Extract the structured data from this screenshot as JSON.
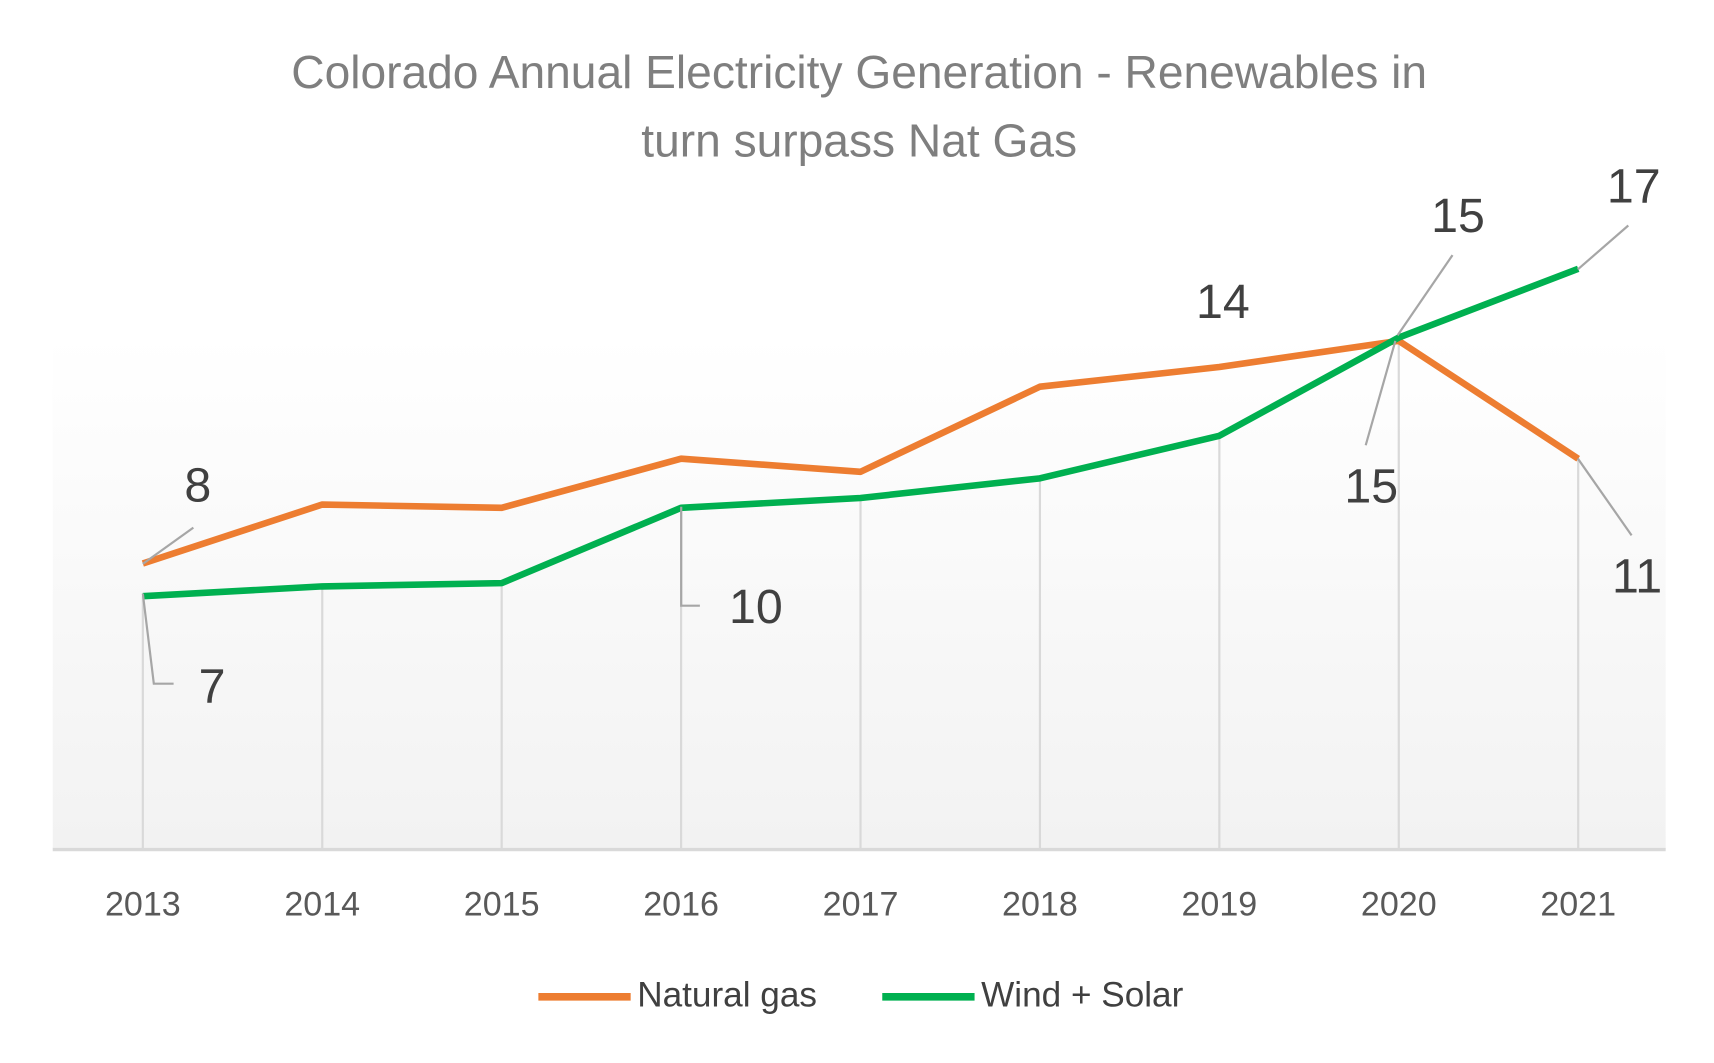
{
  "chart_data": {
    "type": "line",
    "title": "Colorado Annual Electricity Generation - Renewables in turn surpass Nat Gas",
    "title_lines": [
      "Colorado Annual Electricity Generation - Renewables in",
      "turn surpass Nat Gas"
    ],
    "xlabel": "",
    "ylabel": "",
    "categories": [
      "2013",
      "2014",
      "2015",
      "2016",
      "2017",
      "2018",
      "2019",
      "2020",
      "2021"
    ],
    "ylim": [
      -0.7,
      15.5
    ],
    "grid": "vertical",
    "legend_position": "bottom",
    "series": [
      {
        "name": "Natural gas",
        "color": "#ed7d31",
        "values": [
          8.0,
          9.8,
          9.7,
          11.2,
          10.8,
          13.4,
          14.0,
          14.8,
          11.2
        ],
        "labels": [
          "8",
          null,
          null,
          null,
          null,
          null,
          "14",
          "15",
          "11"
        ]
      },
      {
        "name": "Wind + Solar",
        "color": "#00b050",
        "values": [
          7.0,
          7.3,
          7.4,
          9.7,
          10.0,
          10.6,
          11.9,
          14.9,
          17.0
        ],
        "labels": [
          "7",
          null,
          null,
          "10",
          null,
          null,
          null,
          "15",
          "17"
        ]
      }
    ]
  }
}
